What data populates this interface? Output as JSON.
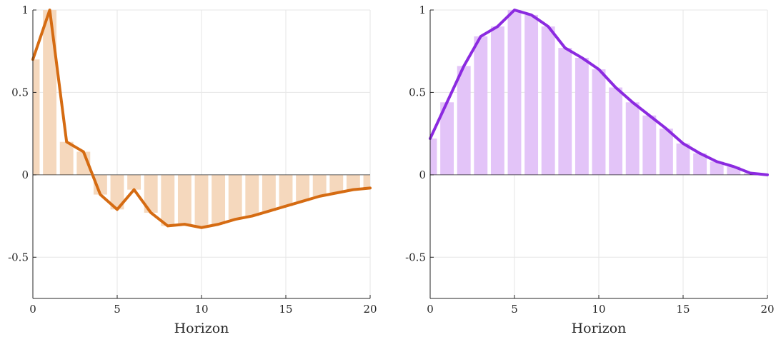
{
  "chart_data": [
    {
      "type": "bar",
      "overlay": "line",
      "xlabel": "Horizon",
      "ylabel": "",
      "xlim": [
        0,
        20
      ],
      "ylim": [
        -0.75,
        1
      ],
      "xticks": [
        0,
        5,
        10,
        15,
        20
      ],
      "xtick_labels": [
        "0",
        "5",
        "10",
        "15",
        "20"
      ],
      "yticks": [
        -0.5,
        0,
        0.5,
        1
      ],
      "ytick_labels": [
        "-0.5",
        "0",
        "0.5",
        "1"
      ],
      "grid": true,
      "colors": {
        "line": "#d56b12",
        "bar": "#f5d8bd"
      },
      "x": [
        0,
        1,
        2,
        3,
        4,
        5,
        6,
        7,
        8,
        9,
        10,
        11,
        12,
        13,
        14,
        15,
        16,
        17,
        18,
        19,
        20
      ],
      "values": [
        0.7,
        1.0,
        0.2,
        0.14,
        -0.12,
        -0.21,
        -0.09,
        -0.23,
        -0.31,
        -0.3,
        -0.32,
        -0.3,
        -0.27,
        -0.25,
        -0.22,
        -0.19,
        -0.16,
        -0.13,
        -0.11,
        -0.09,
        -0.08
      ]
    },
    {
      "type": "bar",
      "overlay": "line",
      "xlabel": "Horizon",
      "ylabel": "",
      "xlim": [
        0,
        20
      ],
      "ylim": [
        -0.75,
        1
      ],
      "xticks": [
        0,
        5,
        10,
        15,
        20
      ],
      "xtick_labels": [
        "0",
        "5",
        "10",
        "15",
        "20"
      ],
      "yticks": [
        -0.5,
        0,
        0.5,
        1
      ],
      "ytick_labels": [
        "-0.5",
        "0",
        "0.5",
        "1"
      ],
      "grid": true,
      "colors": {
        "line": "#8b2ae0",
        "bar": "#e3c4f8"
      },
      "x": [
        0,
        1,
        2,
        3,
        4,
        5,
        6,
        7,
        8,
        9,
        10,
        11,
        12,
        13,
        14,
        15,
        16,
        17,
        18,
        19,
        20
      ],
      "values": [
        0.22,
        0.44,
        0.66,
        0.84,
        0.9,
        1.0,
        0.97,
        0.9,
        0.77,
        0.71,
        0.64,
        0.53,
        0.44,
        0.36,
        0.28,
        0.19,
        0.13,
        0.08,
        0.05,
        0.01,
        0.0
      ]
    }
  ]
}
